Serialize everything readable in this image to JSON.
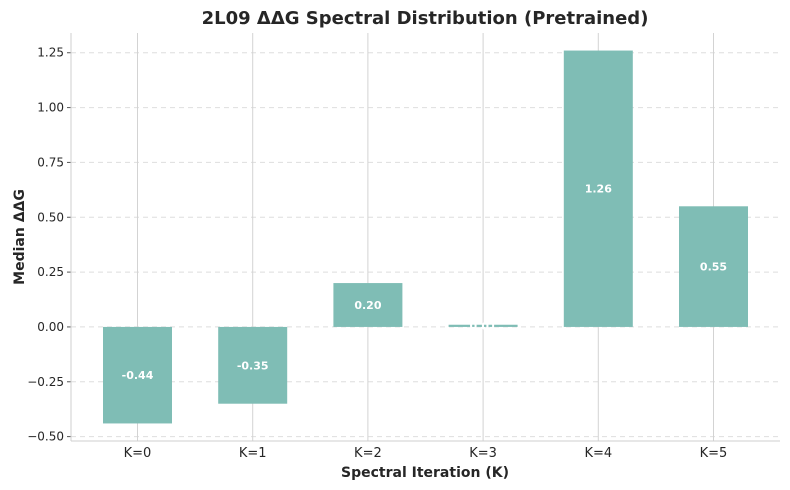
{
  "chart_data": {
    "type": "bar",
    "title": "2L09 ΔΔG Spectral Distribution (Pretrained)",
    "xlabel": "Spectral Iteration (K)",
    "ylabel": "Median ΔΔG",
    "categories": [
      "K=0",
      "K=1",
      "K=2",
      "K=3",
      "K=4",
      "K=5"
    ],
    "values": [
      -0.44,
      -0.35,
      0.2,
      0.01,
      1.26,
      0.55
    ],
    "value_labels": [
      "-0.44",
      "-0.35",
      "0.20",
      "0.01",
      "1.26",
      "0.55"
    ],
    "ylim": [
      -0.52,
      1.34
    ],
    "yticks": [
      -0.5,
      -0.25,
      0.0,
      0.25,
      0.5,
      0.75,
      1.0,
      1.25
    ],
    "ytick_labels": [
      "−0.50",
      "−0.25",
      "0.00",
      "0.25",
      "0.50",
      "0.75",
      "1.00",
      "1.25"
    ],
    "bar_color": "#7fbdb5",
    "grid": true
  }
}
